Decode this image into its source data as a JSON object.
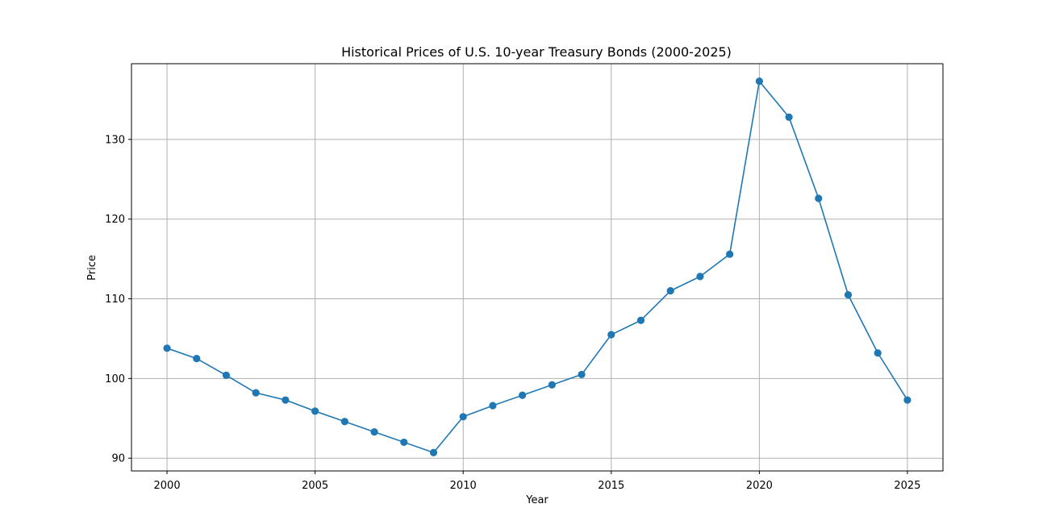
{
  "chart_data": {
    "type": "line",
    "title": "Historical Prices of U.S. 10-year Treasury Bonds (2000-2025)",
    "xlabel": "Year",
    "ylabel": "Price",
    "x": [
      2000,
      2001,
      2002,
      2003,
      2004,
      2005,
      2006,
      2007,
      2008,
      2009,
      2010,
      2011,
      2012,
      2013,
      2014,
      2015,
      2016,
      2017,
      2018,
      2019,
      2020,
      2021,
      2022,
      2023,
      2024,
      2025
    ],
    "series": [
      {
        "values": [
          103.8,
          102.5,
          100.4,
          98.2,
          97.3,
          95.9,
          94.6,
          93.3,
          92.0,
          90.7,
          95.2,
          96.6,
          97.9,
          99.2,
          100.5,
          105.5,
          107.3,
          111.0,
          112.8,
          115.6,
          137.3,
          132.8,
          122.6,
          110.5,
          103.2,
          97.3
        ],
        "color": "#1f77b4"
      }
    ],
    "xlim": [
      1998.8,
      2026.2
    ],
    "ylim": [
      88.4,
      139.5
    ],
    "xticks": [
      2000,
      2005,
      2010,
      2015,
      2020,
      2025
    ],
    "yticks": [
      90,
      100,
      110,
      120,
      130
    ],
    "grid": true,
    "legend": "none"
  }
}
